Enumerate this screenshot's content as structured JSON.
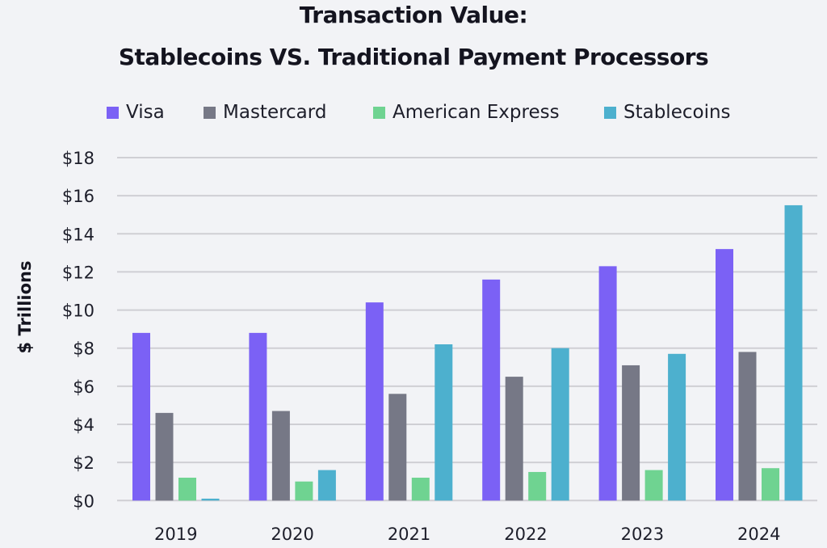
{
  "chart_data": {
    "type": "bar",
    "title": "Transaction Value:",
    "subtitle": "Stablecoins VS. Traditional Payment Processors",
    "xlabel": "",
    "ylabel": "$ Trillions",
    "ylim": [
      0,
      18
    ],
    "yticks": [
      0,
      2,
      4,
      6,
      8,
      10,
      12,
      14,
      16,
      18
    ],
    "ytick_labels": [
      "$0",
      "$2",
      "$4",
      "$6",
      "$8",
      "$10",
      "$12",
      "$14",
      "$16",
      "$18"
    ],
    "grid": true,
    "legend_position": "top",
    "categories": [
      "2019",
      "2020",
      "2021",
      "2022",
      "2023",
      "2024"
    ],
    "series": [
      {
        "name": "Visa",
        "color": "#7b61f5",
        "values": [
          8.8,
          8.8,
          10.4,
          11.6,
          12.3,
          13.2
        ]
      },
      {
        "name": "Mastercard",
        "color": "#767886",
        "values": [
          4.6,
          4.7,
          5.6,
          6.5,
          7.1,
          7.8
        ]
      },
      {
        "name": "American Express",
        "color": "#6fd391",
        "values": [
          1.2,
          1.0,
          1.2,
          1.5,
          1.6,
          1.7
        ]
      },
      {
        "name": "Stablecoins",
        "color": "#4db0ce",
        "values": [
          0.1,
          1.6,
          8.2,
          8.0,
          7.7,
          15.5
        ]
      }
    ]
  }
}
